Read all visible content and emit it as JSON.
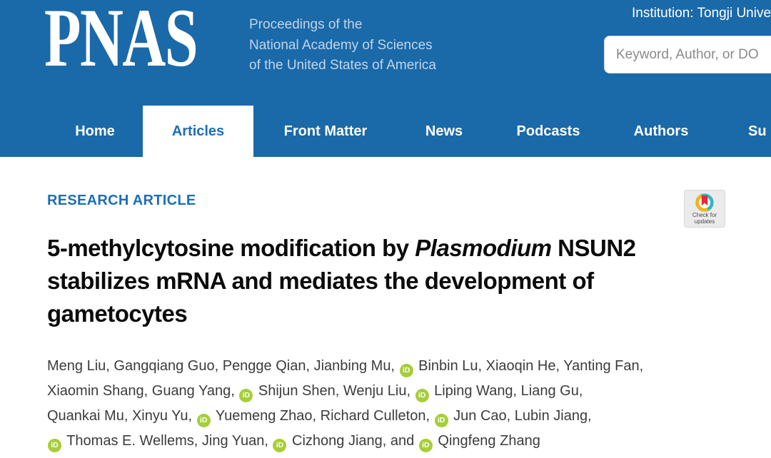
{
  "header": {
    "logo": "PNAS",
    "tagline_lines": [
      "Proceedings of the",
      "National Academy of Sciences",
      "of the United States of America"
    ],
    "institution": "Institution: Tongji Unive",
    "search_placeholder": "Keyword, Author, or DO"
  },
  "nav": {
    "items": [
      {
        "label": "Home",
        "active": false
      },
      {
        "label": "Articles",
        "active": true
      },
      {
        "label": "Front Matter",
        "active": false
      },
      {
        "label": "News",
        "active": false
      },
      {
        "label": "Podcasts",
        "active": false
      },
      {
        "label": "Authors",
        "active": false
      },
      {
        "label": "Su",
        "active": false
      }
    ]
  },
  "article": {
    "kicker": "RESEARCH ARTICLE",
    "crossmark": {
      "line1": "Check for",
      "line2": "updates"
    },
    "title_part1": "5-methylcytosine modification by ",
    "title_italic": "Plasmodium",
    "title_part2": " NSUN2 stabilizes mRNA and mediates the development of gametocytes",
    "orcid_glyph": "iD",
    "author_lines": [
      [
        {
          "t": "text",
          "v": "Meng Liu, Gangqiang Guo, Pengge Qian, Jianbing Mu, "
        },
        {
          "t": "orcid"
        },
        {
          "t": "text",
          "v": " Binbin Lu, Xiaoqin He, Yanting Fan,"
        }
      ],
      [
        {
          "t": "text",
          "v": "Xiaomin Shang, Guang Yang, "
        },
        {
          "t": "orcid"
        },
        {
          "t": "text",
          "v": " Shijun Shen, Wenju Liu, "
        },
        {
          "t": "orcid"
        },
        {
          "t": "text",
          "v": " Liping Wang, Liang Gu,"
        }
      ],
      [
        {
          "t": "text",
          "v": "Quankai Mu, Xinyu Yu, "
        },
        {
          "t": "orcid"
        },
        {
          "t": "text",
          "v": " Yuemeng Zhao, Richard Culleton, "
        },
        {
          "t": "orcid"
        },
        {
          "t": "text",
          "v": " Jun Cao, Lubin Jiang,"
        }
      ],
      [
        {
          "t": "orcid"
        },
        {
          "t": "text",
          "v": " Thomas E. Wellems, Jing Yuan, "
        },
        {
          "t": "orcid"
        },
        {
          "t": "text",
          "v": " Cizhong Jiang, and "
        },
        {
          "t": "orcid"
        },
        {
          "t": "text",
          "v": " Qingfeng Zhang"
        }
      ]
    ]
  },
  "colors": {
    "brand_blue": "#1a69a9",
    "link_blue": "#1d6eb5",
    "tagline_blue": "#c3d4e6",
    "orcid_green": "#a6ce39",
    "crossmark_yellow": "#f0b41b",
    "crossmark_teal": "#31b7c3",
    "crossmark_red": "#e5293b"
  }
}
